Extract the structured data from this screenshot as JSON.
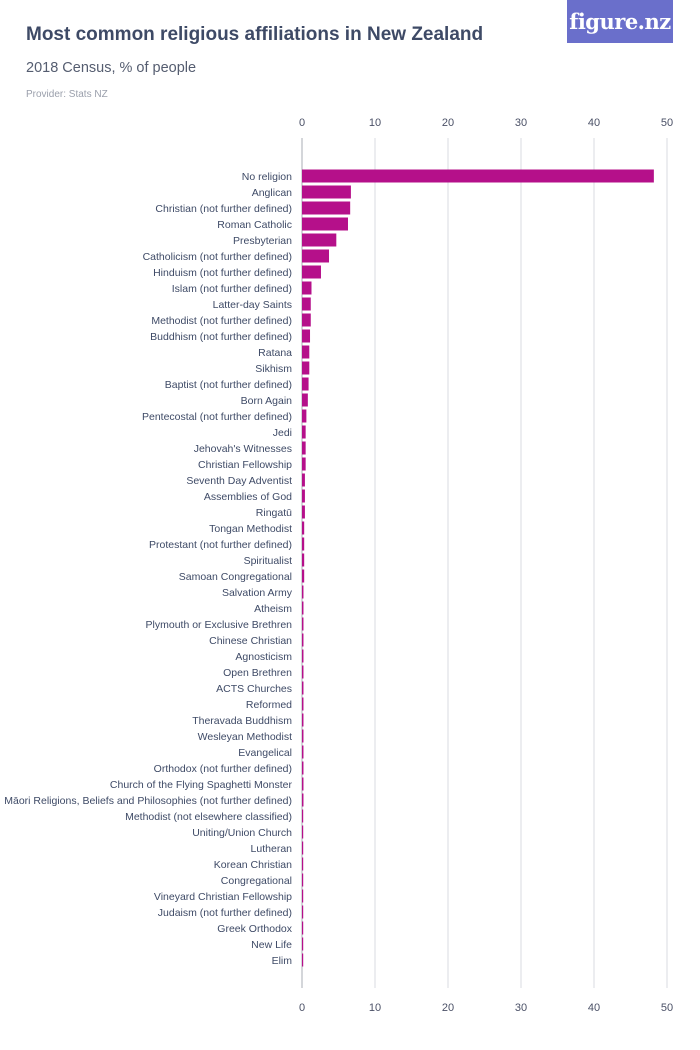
{
  "header": {
    "title": "Most common religious affiliations in New Zealand",
    "subtitle": "2018 Census, % of people",
    "provider": "Provider: Stats NZ",
    "logo": "figure.nz"
  },
  "colors": {
    "bar": "#b5108a",
    "grid": "#d9dbe0",
    "axis": "#a9acb5"
  },
  "chart_data": {
    "type": "bar",
    "orientation": "horizontal",
    "title": "Most common religious affiliations in New Zealand",
    "subtitle": "2018 Census, % of people",
    "xlim": [
      0,
      50
    ],
    "xticks": [
      0,
      10,
      20,
      30,
      40,
      50
    ],
    "grid": true,
    "categories": [
      "No religion",
      "Anglican",
      "Christian (not further defined)",
      "Roman Catholic",
      "Presbyterian",
      "Catholicism (not further defined)",
      "Hinduism (not further defined)",
      "Islam (not further defined)",
      "Latter-day Saints",
      "Methodist (not further defined)",
      "Buddhism (not further defined)",
      "Ratana",
      "Sikhism",
      "Baptist (not further defined)",
      "Born Again",
      "Pentecostal (not further defined)",
      "Jedi",
      "Jehovah's Witnesses",
      "Christian Fellowship",
      "Seventh Day Adventist",
      "Assemblies of God",
      "Ringatū",
      "Tongan Methodist",
      "Protestant (not further defined)",
      "Spiritualist",
      "Samoan Congregational",
      "Salvation Army",
      "Atheism",
      "Plymouth or Exclusive Brethren",
      "Chinese Christian",
      "Agnosticism",
      "Open Brethren",
      "ACTS Churches",
      "Reformed",
      "Theravada Buddhism",
      "Wesleyan Methodist",
      "Evangelical",
      "Orthodox (not further defined)",
      "Church of the Flying Spaghetti Monster",
      "Māori Religions, Beliefs and Philosophies (not further defined)",
      "Methodist (not elsewhere classified)",
      "Uniting/Union Church",
      "Lutheran",
      "Korean Christian",
      "Congregational",
      "Vineyard Christian Fellowship",
      "Judaism (not further defined)",
      "Greek Orthodox",
      "New Life",
      "Elim"
    ],
    "values": [
      48.2,
      6.7,
      6.6,
      6.3,
      4.7,
      3.7,
      2.6,
      1.3,
      1.2,
      1.2,
      1.1,
      1.0,
      1.0,
      0.9,
      0.8,
      0.6,
      0.5,
      0.5,
      0.5,
      0.4,
      0.4,
      0.4,
      0.3,
      0.3,
      0.3,
      0.3,
      0.2,
      0.2,
      0.2,
      0.2,
      0.2,
      0.2,
      0.2,
      0.2,
      0.2,
      0.2,
      0.2,
      0.2,
      0.2,
      0.2,
      0.1,
      0.1,
      0.1,
      0.1,
      0.1,
      0.1,
      0.1,
      0.1,
      0.1,
      0.1
    ]
  }
}
